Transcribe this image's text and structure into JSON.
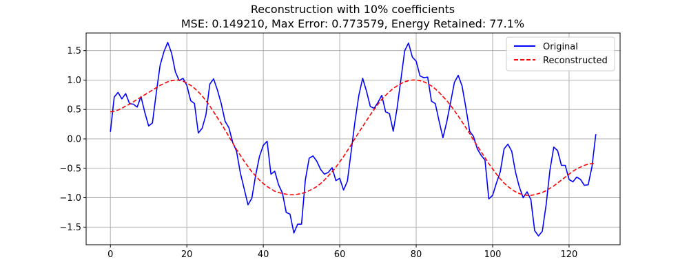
{
  "chart_data": {
    "type": "line",
    "title": "Reconstruction with 10% coefficients",
    "subtitle": "MSE: 0.149210, Max Error: 0.773579, Energy Retained: 77.1%",
    "xlabel": "",
    "ylabel": "",
    "xlim": [
      -6.35,
      133.35
    ],
    "ylim": [
      -1.8,
      1.8
    ],
    "xticks": [
      0,
      20,
      40,
      60,
      80,
      100,
      120
    ],
    "yticks": [
      -1.5,
      -1.0,
      -0.5,
      0.0,
      0.5,
      1.0,
      1.5
    ],
    "xtick_labels": [
      "0",
      "20",
      "40",
      "60",
      "80",
      "100",
      "120"
    ],
    "ytick_labels": [
      "−1.5",
      "−1.0",
      "−0.5",
      "0.0",
      "0.5",
      "1.0",
      "1.5"
    ],
    "grid": true,
    "legend_position": "top-right",
    "series": [
      {
        "name": "Original",
        "color": "#0000ff",
        "style": "solid",
        "values": [
          0.12,
          0.71,
          0.79,
          0.68,
          0.77,
          0.6,
          0.59,
          0.54,
          0.72,
          0.45,
          0.22,
          0.27,
          0.78,
          1.25,
          1.48,
          1.64,
          1.46,
          1.14,
          0.99,
          1.03,
          0.91,
          0.65,
          0.6,
          0.1,
          0.18,
          0.41,
          0.93,
          1.02,
          0.83,
          0.6,
          0.3,
          0.19,
          -0.06,
          -0.21,
          -0.58,
          -0.85,
          -1.12,
          -1.01,
          -0.62,
          -0.3,
          -0.11,
          -0.04,
          -0.6,
          -0.55,
          -0.78,
          -0.92,
          -1.25,
          -1.28,
          -1.6,
          -1.45,
          -1.45,
          -0.7,
          -0.33,
          -0.29,
          -0.38,
          -0.52,
          -0.6,
          -0.57,
          -0.49,
          -0.71,
          -0.67,
          -0.87,
          -0.72,
          -0.21,
          0.3,
          0.74,
          1.03,
          0.81,
          0.55,
          0.52,
          0.62,
          0.74,
          0.46,
          0.43,
          0.13,
          0.52,
          1.01,
          1.5,
          1.63,
          1.39,
          1.32,
          1.07,
          1.04,
          1.05,
          0.64,
          0.6,
          0.3,
          0.02,
          0.29,
          0.62,
          0.96,
          1.08,
          0.9,
          0.53,
          0.13,
          0.04,
          -0.17,
          -0.28,
          -0.36,
          -1.02,
          -0.96,
          -0.75,
          -0.56,
          -0.17,
          -0.09,
          -0.21,
          -0.57,
          -0.82,
          -1.0,
          -0.9,
          -1.03,
          -1.56,
          -1.65,
          -1.57,
          -1.12,
          -0.53,
          -0.14,
          -0.2,
          -0.45,
          -0.45,
          -0.69,
          -0.73,
          -0.65,
          -0.69,
          -0.79,
          -0.78,
          -0.47,
          0.08
        ]
      },
      {
        "name": "Reconstructed",
        "color": "#ff0000",
        "style": "dashed",
        "values": [
          0.46,
          0.47,
          0.49,
          0.52,
          0.56,
          0.59,
          0.63,
          0.67,
          0.71,
          0.75,
          0.79,
          0.83,
          0.87,
          0.91,
          0.94,
          0.97,
          0.99,
          1.0,
          1.0,
          0.98,
          0.95,
          0.91,
          0.86,
          0.8,
          0.73,
          0.65,
          0.56,
          0.46,
          0.36,
          0.26,
          0.15,
          0.04,
          -0.07,
          -0.18,
          -0.28,
          -0.38,
          -0.47,
          -0.56,
          -0.63,
          -0.7,
          -0.76,
          -0.81,
          -0.85,
          -0.89,
          -0.91,
          -0.93,
          -0.94,
          -0.95,
          -0.95,
          -0.94,
          -0.93,
          -0.91,
          -0.88,
          -0.85,
          -0.81,
          -0.76,
          -0.7,
          -0.63,
          -0.56,
          -0.48,
          -0.39,
          -0.3,
          -0.2,
          -0.1,
          0.01,
          0.11,
          0.21,
          0.31,
          0.41,
          0.5,
          0.59,
          0.67,
          0.74,
          0.8,
          0.86,
          0.9,
          0.94,
          0.97,
          0.99,
          1.0,
          1.0,
          0.99,
          0.97,
          0.94,
          0.9,
          0.85,
          0.79,
          0.72,
          0.65,
          0.57,
          0.48,
          0.39,
          0.29,
          0.19,
          0.09,
          -0.02,
          -0.12,
          -0.22,
          -0.32,
          -0.42,
          -0.51,
          -0.6,
          -0.68,
          -0.75,
          -0.81,
          -0.86,
          -0.9,
          -0.93,
          -0.95,
          -0.96,
          -0.96,
          -0.95,
          -0.93,
          -0.91,
          -0.88,
          -0.84,
          -0.8,
          -0.75,
          -0.7,
          -0.65,
          -0.6,
          -0.55,
          -0.51,
          -0.48,
          -0.45,
          -0.43,
          -0.42,
          -0.42
        ]
      }
    ]
  }
}
